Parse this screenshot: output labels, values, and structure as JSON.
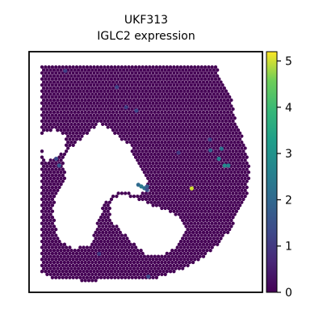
{
  "chart_data": {
    "type": "scatter",
    "title_line1": "UKF313",
    "title_line2": "IGLC2 expression",
    "xlabel": "",
    "ylabel": "",
    "axes_ticks_visible": false,
    "colormap": "viridis",
    "colorbar": {
      "range": [
        0,
        5.2
      ],
      "ticks": [
        0,
        1,
        2,
        3,
        4,
        5
      ],
      "tick_labels": [
        "0",
        "1",
        "2",
        "3",
        "4",
        "5"
      ],
      "position": "right"
    },
    "background_value": 0,
    "spots": [
      {
        "x": 0.697,
        "y": 0.568,
        "value": 5.0
      },
      {
        "x": 0.838,
        "y": 0.473,
        "value": 2.8
      },
      {
        "x": 0.854,
        "y": 0.473,
        "value": 2.6
      },
      {
        "x": 0.813,
        "y": 0.445,
        "value": 2.5
      },
      {
        "x": 0.825,
        "y": 0.403,
        "value": 2.2
      },
      {
        "x": 0.777,
        "y": 0.41,
        "value": 1.8
      },
      {
        "x": 0.468,
        "y": 0.553,
        "value": 2.0
      },
      {
        "x": 0.481,
        "y": 0.56,
        "value": 2.4
      },
      {
        "x": 0.494,
        "y": 0.567,
        "value": 2.1
      },
      {
        "x": 0.506,
        "y": 0.56,
        "value": 1.7
      },
      {
        "x": 0.506,
        "y": 0.575,
        "value": 1.4
      },
      {
        "x": 0.129,
        "y": 0.473,
        "value": 1.6
      },
      {
        "x": 0.116,
        "y": 0.445,
        "value": 1.3
      },
      {
        "x": 0.511,
        "y": 0.935,
        "value": 1.3
      },
      {
        "x": 0.46,
        "y": 0.245,
        "value": 1.3
      },
      {
        "x": 0.416,
        "y": 0.231,
        "value": 1.1
      },
      {
        "x": 0.376,
        "y": 0.147,
        "value": 1.2
      },
      {
        "x": 0.155,
        "y": 0.08,
        "value": 1.1
      },
      {
        "x": 0.64,
        "y": 0.42,
        "value": 1.0
      },
      {
        "x": 0.775,
        "y": 0.365,
        "value": 1.2
      },
      {
        "x": 0.3,
        "y": 0.84,
        "value": 1.0
      }
    ]
  }
}
